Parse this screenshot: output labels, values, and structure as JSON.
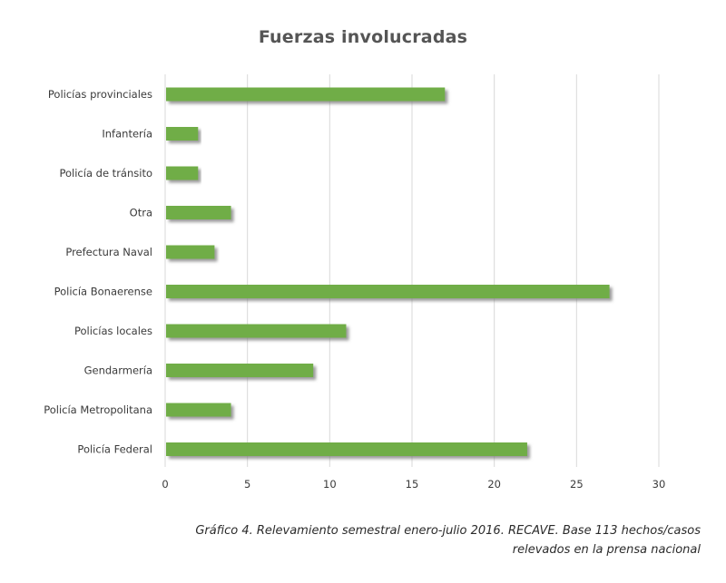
{
  "chart_data": {
    "type": "bar",
    "orientation": "horizontal",
    "title": "Fuerzas involucradas",
    "categories": [
      "Policías provinciales",
      "Infantería",
      "Policía de tránsito",
      "Otra",
      "Prefectura Naval",
      "Policía Bonaerense",
      "Policías locales",
      "Gendarmería",
      "Policía Metropolitana",
      "Policía Federal"
    ],
    "values": [
      17,
      2,
      2,
      4,
      3,
      27,
      11,
      9,
      4,
      22
    ],
    "xlim": [
      0,
      30
    ],
    "xticks": [
      0,
      5,
      10,
      15,
      20,
      25,
      30
    ],
    "grid": "vertical",
    "legend": "none",
    "bar_color": "#70ad47",
    "shadow_color": "#9a9a9a",
    "grid_color": "#d9d9d9"
  },
  "caption": {
    "line1": "Gráfico 4. Relevamiento semestral enero-julio 2016. RECAVE. Base 113 hechos/casos",
    "line2": "relevados en la prensa nacional"
  }
}
